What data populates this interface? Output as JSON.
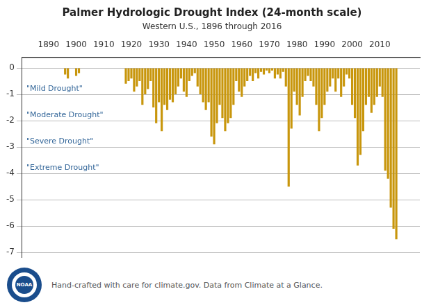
{
  "chart_data": {
    "type": "bar",
    "title": "Palmer Hydrologic Drought Index (24-month scale)",
    "subtitle": "Western U.S., 1896 through 2016",
    "x": [
      1896,
      1897,
      1900,
      1901,
      1918,
      1919,
      1920,
      1921,
      1922,
      1923,
      1924,
      1925,
      1926,
      1927,
      1928,
      1929,
      1930,
      1931,
      1932,
      1933,
      1934,
      1935,
      1936,
      1937,
      1938,
      1939,
      1940,
      1941,
      1942,
      1943,
      1944,
      1945,
      1946,
      1947,
      1948,
      1949,
      1950,
      1951,
      1952,
      1953,
      1954,
      1955,
      1956,
      1957,
      1958,
      1959,
      1960,
      1961,
      1962,
      1963,
      1964,
      1965,
      1966,
      1967,
      1968,
      1969,
      1970,
      1971,
      1972,
      1973,
      1974,
      1975,
      1976,
      1977,
      1978,
      1979,
      1980,
      1981,
      1982,
      1983,
      1984,
      1985,
      1986,
      1987,
      1988,
      1989,
      1990,
      1991,
      1992,
      1993,
      1994,
      1995,
      1996,
      1997,
      1998,
      1999,
      2000,
      2001,
      2002,
      2003,
      2004,
      2005,
      2006,
      2007,
      2008,
      2009,
      2010,
      2011,
      2012,
      2013,
      2014,
      2015,
      2016
    ],
    "values": [
      -0.25,
      -0.4,
      -0.3,
      -0.2,
      -0.6,
      -0.5,
      -0.4,
      -0.9,
      -0.7,
      -0.5,
      -1.4,
      -1.0,
      -0.8,
      -0.5,
      -1.5,
      -2.1,
      -1.3,
      -2.4,
      -1.4,
      -1.6,
      -1.2,
      -1.3,
      -1.0,
      -0.7,
      -0.4,
      -0.9,
      -1.1,
      -0.5,
      -0.3,
      -0.2,
      -0.7,
      -1.0,
      -1.3,
      -1.6,
      -1.3,
      -2.6,
      -2.9,
      -2.1,
      -1.4,
      -1.9,
      -2.4,
      -2.1,
      -1.9,
      -1.4,
      -0.5,
      -0.9,
      -1.1,
      -0.7,
      -0.5,
      -0.3,
      -0.5,
      -0.2,
      -0.4,
      -0.15,
      -0.25,
      -0.1,
      -0.2,
      -0.1,
      -0.4,
      -0.25,
      -0.4,
      -0.15,
      -0.7,
      -4.5,
      -2.3,
      -0.9,
      -1.4,
      -1.8,
      -1.1,
      -0.5,
      -0.3,
      -0.5,
      -0.7,
      -1.4,
      -2.4,
      -1.9,
      -1.4,
      -0.9,
      -0.7,
      -0.4,
      -0.9,
      -0.4,
      -1.1,
      -0.7,
      -0.25,
      -0.4,
      -1.4,
      -1.9,
      -3.7,
      -3.3,
      -2.4,
      -1.4,
      -1.1,
      -1.7,
      -1.4,
      -1.1,
      -0.7,
      -1.1,
      -3.9,
      -4.2,
      -5.3,
      -6.1,
      -6.5
    ],
    "color": "#C8960C",
    "xlim": [
      1886,
      2019
    ],
    "xticks": [
      1890,
      1900,
      1910,
      1920,
      1930,
      1940,
      1950,
      1960,
      1970,
      1980,
      1990,
      2000,
      2010
    ],
    "ylim": [
      -7.2,
      0.4
    ],
    "yticks": [
      0,
      -1,
      -2,
      -3,
      -4,
      -5,
      -6,
      -7
    ],
    "grid": true,
    "annotations": [
      {
        "y": -1,
        "text": "\"Mild Drought\"",
        "color": "#336699"
      },
      {
        "y": -2,
        "text": "\"Moderate Drought\"",
        "color": "#336699"
      },
      {
        "y": -3,
        "text": "\"Severe Drought\"",
        "color": "#336699"
      },
      {
        "y": -4,
        "text": "\"Extreme Drought\"",
        "color": "#336699"
      }
    ],
    "footer": "Hand-crafted with care for climate.gov. Data from Climate at a Glance.",
    "logo_text": "NOAA"
  }
}
